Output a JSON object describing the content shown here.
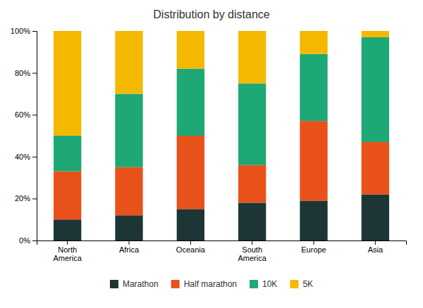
{
  "chart_data": {
    "type": "bar",
    "title": "Distribution by distance",
    "categories": [
      "North\nAmerica",
      "Africa",
      "Oceania",
      "South\nAmerica",
      "Europe",
      "Asia"
    ],
    "series": [
      {
        "name": "Marathon",
        "color": "#1e3535",
        "values": [
          0.1,
          0.12,
          0.15,
          0.18,
          0.19,
          0.22
        ]
      },
      {
        "name": "Half marathon",
        "color": "#e8521a",
        "values": [
          0.23,
          0.23,
          0.35,
          0.18,
          0.38,
          0.25
        ]
      },
      {
        "name": "10K",
        "color": "#1ea876",
        "values": [
          0.17,
          0.35,
          0.32,
          0.39,
          0.32,
          0.5
        ]
      },
      {
        "name": "5K",
        "color": "#f5b800",
        "values": [
          0.5,
          0.3,
          0.18,
          0.25,
          0.11,
          0.03
        ]
      }
    ],
    "stacked": true,
    "ylim": [
      0,
      1.0
    ],
    "yticks": [
      {
        "value": 0.0,
        "label": "0%"
      },
      {
        "value": 0.2,
        "label": "20%"
      },
      {
        "value": 0.4,
        "label": "40%"
      },
      {
        "value": 0.6,
        "label": "60%"
      },
      {
        "value": 0.8,
        "label": "80%"
      },
      {
        "value": 1.0,
        "label": "100%"
      }
    ],
    "grid": false,
    "legend": "bottom"
  }
}
